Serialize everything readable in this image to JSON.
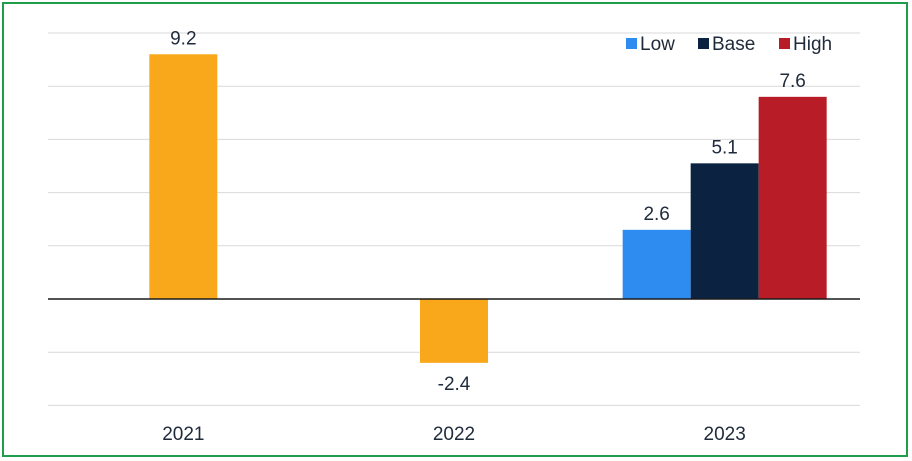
{
  "chart_data": {
    "type": "bar",
    "categories": [
      "2021",
      "2022",
      "2023"
    ],
    "ylim": [
      -4,
      10
    ],
    "grid": true,
    "legend_position": "top-right",
    "legend": [
      {
        "name": "Low",
        "color": "#2e8cf0"
      },
      {
        "name": "Base",
        "color": "#0b2341"
      },
      {
        "name": "High",
        "color": "#b71c27"
      }
    ],
    "bars": [
      {
        "category": "2021",
        "series": "",
        "value": 9.2,
        "label": "9.2",
        "color": "#f9a81b"
      },
      {
        "category": "2022",
        "series": "",
        "value": -2.4,
        "label": "-2.4",
        "color": "#f9a81b"
      },
      {
        "category": "2023",
        "series": "Low",
        "value": 2.6,
        "label": "2.6",
        "color": "#2e8cf0"
      },
      {
        "category": "2023",
        "series": "Base",
        "value": 5.1,
        "label": "5.1",
        "color": "#0b2341"
      },
      {
        "category": "2023",
        "series": "High",
        "value": 7.6,
        "label": "7.6",
        "color": "#b71c27"
      }
    ],
    "colors": {
      "gridline": "#d9d9d9",
      "zero_line": "#1a1a1a",
      "border": "#1e9e4a"
    }
  }
}
